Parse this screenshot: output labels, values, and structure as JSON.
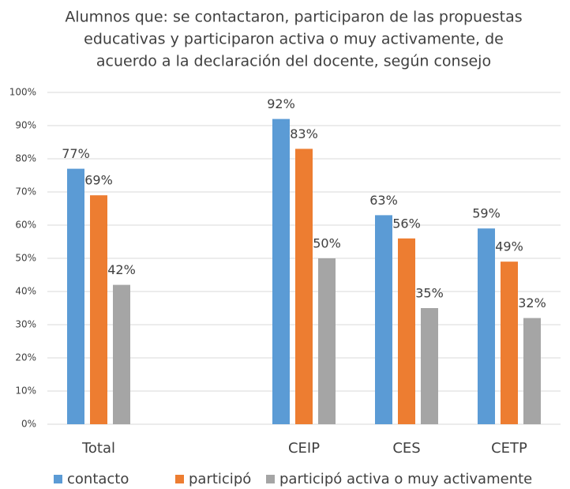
{
  "chart_data": {
    "type": "bar",
    "title": [
      "Alumnos que: se contactaron, participaron de las propuestas",
      "educativas y participaron activa o muy activamente, de",
      "acuerdo a la declaración del docente, según consejo"
    ],
    "categories": [
      "Total",
      null,
      "CEIP",
      "CES",
      "CETP"
    ],
    "series": [
      {
        "name": "contacto",
        "color": "#5b9bd5",
        "values": [
          77,
          null,
          92,
          63,
          59
        ],
        "value_labels": [
          "77%",
          null,
          "92%",
          "63%",
          "59%"
        ]
      },
      {
        "name": "participó",
        "color": "#ed7d31",
        "values": [
          69,
          null,
          83,
          56,
          49
        ],
        "value_labels": [
          "69%",
          null,
          "83%",
          "56%",
          "49%"
        ]
      },
      {
        "name": "participó activa o muy activamente",
        "color": "#a5a5a5",
        "values": [
          42,
          null,
          50,
          35,
          32
        ],
        "value_labels": [
          "42%",
          null,
          "50%",
          "35%",
          "32%"
        ]
      }
    ],
    "ylim": [
      0,
      100
    ],
    "yticks": [
      {
        "value": 0,
        "label": "0%"
      },
      {
        "value": 10,
        "label": "10%"
      },
      {
        "value": 20,
        "label": "20%"
      },
      {
        "value": 30,
        "label": "30%"
      },
      {
        "value": 40,
        "label": "40%"
      },
      {
        "value": 50,
        "label": "50%"
      },
      {
        "value": 60,
        "label": "60%"
      },
      {
        "value": 70,
        "label": "70%"
      },
      {
        "value": 80,
        "label": "80%"
      },
      {
        "value": 90,
        "label": "90%"
      },
      {
        "value": 100,
        "label": "100%"
      }
    ],
    "grid": true,
    "legend": "bottom"
  }
}
